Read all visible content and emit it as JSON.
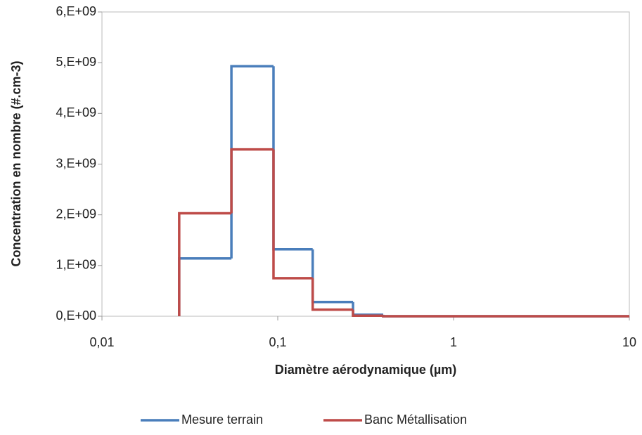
{
  "chart_data": {
    "type": "histogram",
    "xlabel": "Diamètre aérodynamique (µm)",
    "ylabel": "Concentration en nombre (#.cm-3)",
    "bins": [
      0.0275,
      0.0545,
      0.0946,
      0.158,
      0.268,
      0.398,
      10
    ],
    "series": [
      {
        "name": "Mesure terrain",
        "color": "#4a7ebb",
        "values": [
          1140000000,
          4930000000,
          1320000000,
          280000000,
          30000000,
          0
        ]
      },
      {
        "name": "Banc Métallisation",
        "color": "#be4b48",
        "values": [
          2030000000,
          3290000000,
          750000000,
          130000000,
          10000000,
          0
        ]
      }
    ],
    "xscale": "log",
    "xlim": [
      0.01,
      10
    ],
    "xticks": [
      {
        "value": 0.01,
        "label": "0,01"
      },
      {
        "value": 0.1,
        "label": "0,1"
      },
      1,
      10
    ],
    "ylim": [
      0,
      6000000000
    ],
    "yticks": [
      {
        "value": 0,
        "label": "0,E+00"
      },
      {
        "value": 1000000000,
        "label": "1,E+09"
      },
      {
        "value": 2000000000,
        "label": "2,E+09"
      },
      {
        "value": 3000000000,
        "label": "3,E+09"
      },
      {
        "value": 4000000000,
        "label": "4,E+09"
      },
      {
        "value": 5000000000,
        "label": "5,E+09"
      },
      {
        "value": 6000000000,
        "label": "6,E+09"
      }
    ],
    "grid": false,
    "legend": "bottom"
  }
}
